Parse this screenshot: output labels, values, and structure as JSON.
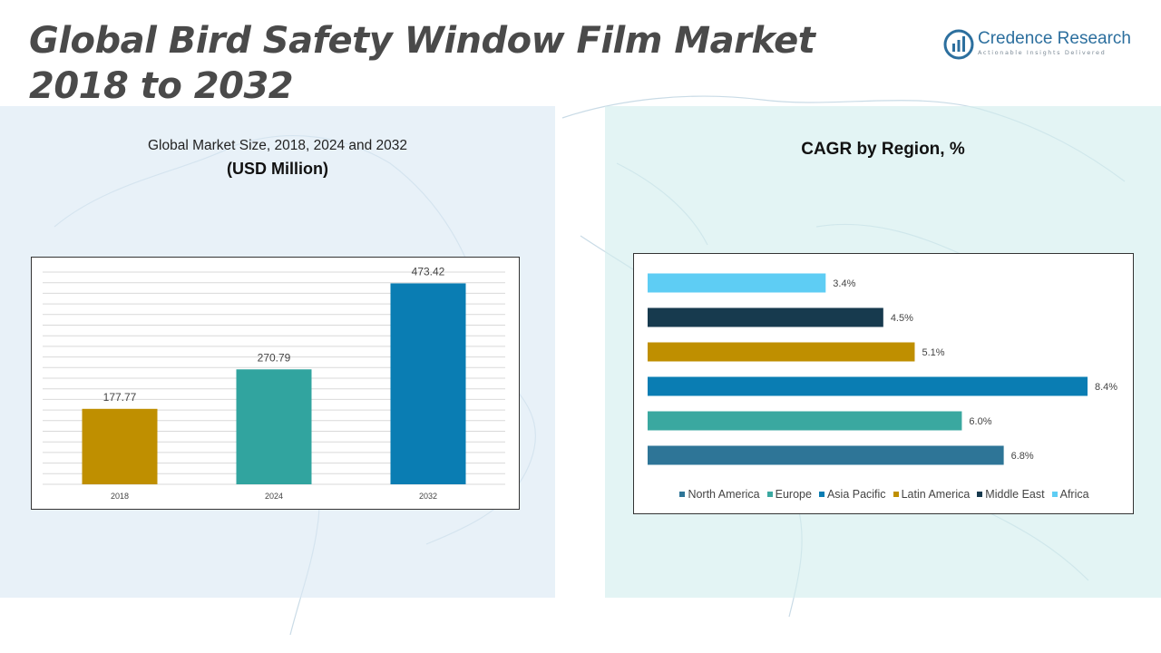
{
  "title_line1": "Global Bird Safety Window Film Market",
  "title_line2": "2018 to 2032",
  "logo": {
    "name": "Credence Research",
    "tagline": "Actionable Insights Delivered"
  },
  "left_panel": {
    "subtitle": "Global Market Size, 2018, 2024 and 2032",
    "unit": "(USD Million)"
  },
  "right_panel": {
    "title": "CAGR by Region, %"
  },
  "chart_data": [
    {
      "type": "bar",
      "title": "Global Market Size, 2018, 2024 and 2032",
      "ylabel": "(USD Million)",
      "categories": [
        "2018",
        "2024",
        "2032"
      ],
      "values": [
        177.77,
        270.79,
        473.42
      ],
      "data_labels": [
        "177.77",
        "270.79",
        "473.42"
      ],
      "colors": [
        "#bf8f00",
        "#31a49f",
        "#0a7db3"
      ],
      "ylim": [
        0,
        500
      ],
      "grid": true
    },
    {
      "type": "bar",
      "orientation": "horizontal",
      "title": "CAGR by Region, %",
      "categories": [
        "North America",
        "Europe",
        "Asia Pacific",
        "Latin America",
        "Middle East",
        "Africa"
      ],
      "values": [
        6.8,
        6.0,
        8.4,
        5.1,
        4.5,
        3.4
      ],
      "data_labels": [
        "6.8%",
        "6.0%",
        "8.4%",
        "5.1%",
        "4.5%",
        "3.4%"
      ],
      "colors": [
        "#2e7597",
        "#3aa8a0",
        "#0a7db3",
        "#bf8f00",
        "#173a4e",
        "#5ecdf4"
      ],
      "xlim": [
        0,
        8.4
      ],
      "legend_position": "bottom"
    }
  ]
}
